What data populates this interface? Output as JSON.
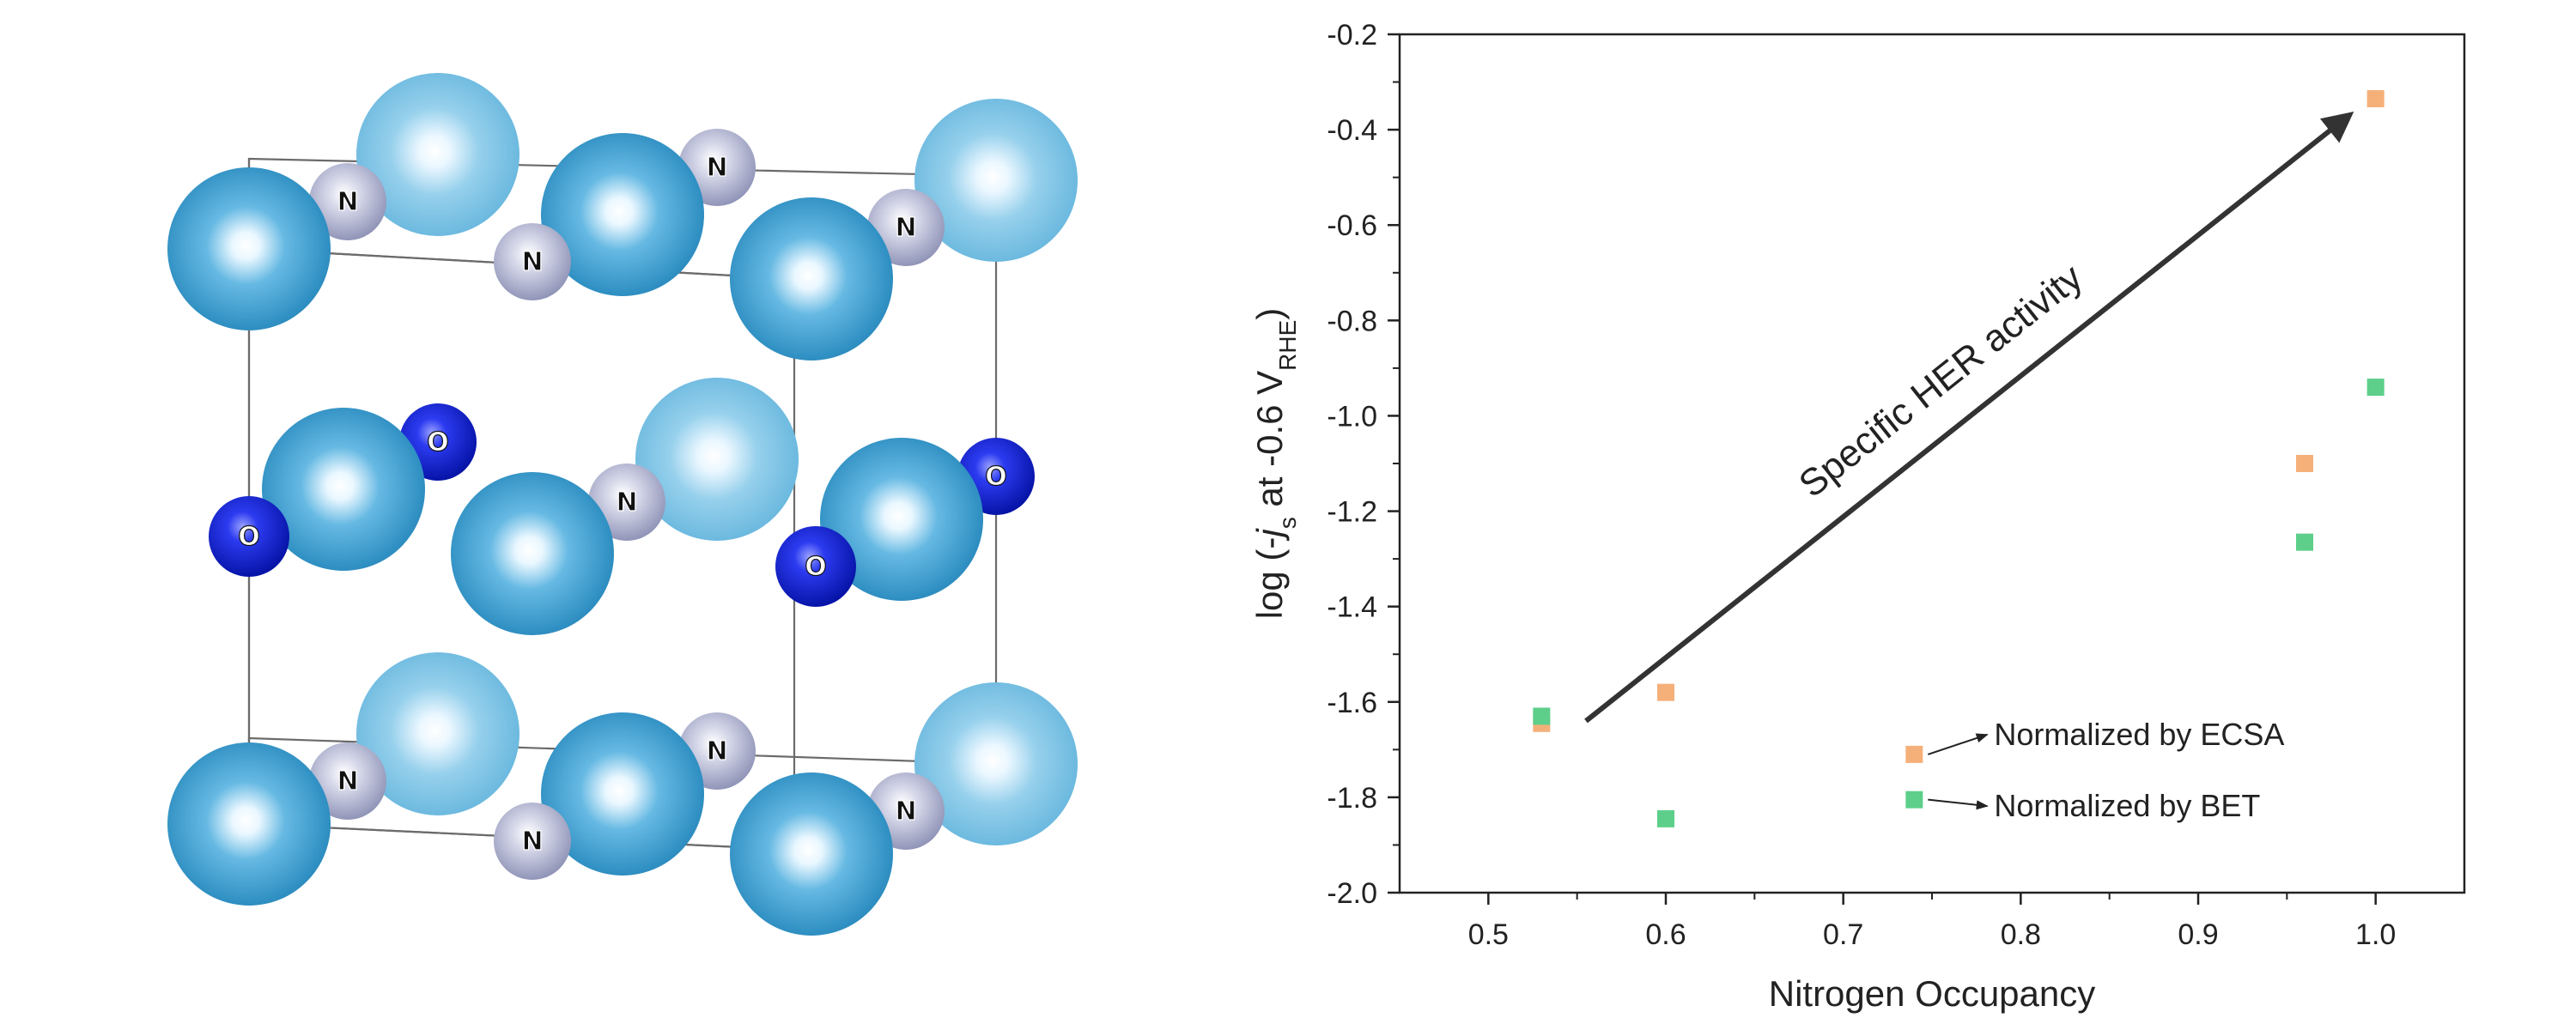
{
  "structure": {
    "atom_colors": {
      "metal_front": "#3f9fd0",
      "metal_back": "#7fc3e3",
      "N": "#a9acc8",
      "O": "#0b1fc6",
      "O_light": "#3a44e0"
    },
    "labels": {
      "N": "N",
      "O": "O"
    }
  },
  "chart_data": {
    "type": "scatter",
    "xlabel": "Nitrogen Occupancy",
    "ylabel_parts": {
      "pre": "log (-",
      "j": "j",
      "s": "s",
      "mid": " at -0.6 V",
      "sub": "RHE",
      "post": ")"
    },
    "xlim": [
      0.45,
      1.05
    ],
    "ylim": [
      -2.0,
      -0.2
    ],
    "x_ticks": [
      0.5,
      0.6,
      0.7,
      0.8,
      0.9,
      1.0
    ],
    "y_ticks": [
      -2.0,
      -1.8,
      -1.6,
      -1.4,
      -1.2,
      -1.0,
      -0.8,
      -0.6,
      -0.4,
      -0.2
    ],
    "series": [
      {
        "name": "Normalized by ECSA",
        "color": "#f5b07a",
        "points": [
          [
            0.53,
            -1.645
          ],
          [
            0.6,
            -1.58
          ],
          [
            0.74,
            -1.71
          ],
          [
            0.96,
            -1.1
          ],
          [
            1.0,
            -0.335
          ]
        ]
      },
      {
        "name": "Normalized by BET",
        "color": "#5dcf8a",
        "points": [
          [
            0.53,
            -1.63
          ],
          [
            0.6,
            -1.845
          ],
          [
            0.74,
            -1.805
          ],
          [
            0.96,
            -1.265
          ],
          [
            1.0,
            -0.94
          ]
        ]
      }
    ],
    "arrow_annotation": {
      "text": "Specific HER activity",
      "from": [
        0.555,
        -1.64
      ],
      "to": [
        0.985,
        -0.37
      ],
      "color": "#333333"
    },
    "legend": {
      "items": [
        {
          "series": "Normalized by ECSA",
          "label_at": [
            0.785,
            -1.69
          ]
        },
        {
          "series": "Normalized by BET",
          "label_at": [
            0.785,
            -1.84
          ]
        }
      ]
    }
  }
}
